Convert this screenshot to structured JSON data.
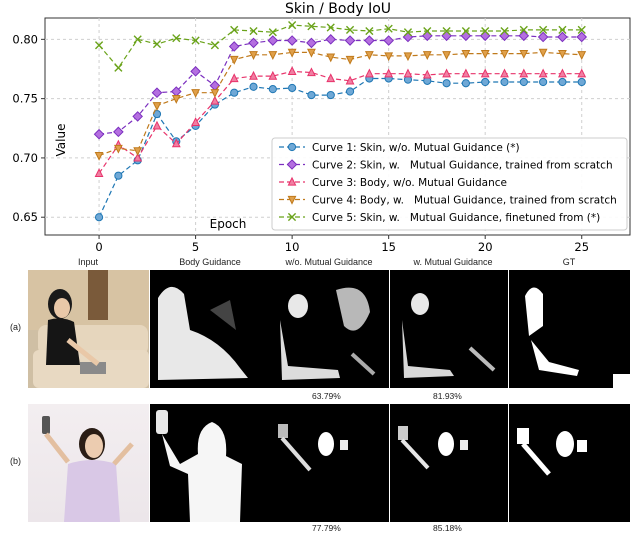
{
  "chart_data": {
    "type": "line",
    "title": "Skin / Body IoU",
    "xlabel": "Epoch",
    "ylabel": "Value",
    "xlim": [
      -2.8,
      27.5
    ],
    "ylim": [
      0.635,
      0.818
    ],
    "x_ticks": [
      0,
      5,
      10,
      15,
      20,
      25
    ],
    "y_ticks": [
      0.65,
      0.7,
      0.75,
      0.8
    ],
    "y_tick_labels": [
      "0.65",
      "0.70",
      "0.75",
      "0.80"
    ],
    "grid": true,
    "legend_position": "lower-right",
    "x": [
      0,
      1,
      2,
      3,
      4,
      5,
      6,
      7,
      8,
      9,
      10,
      11,
      12,
      13,
      14,
      15,
      16,
      17,
      18,
      19,
      20,
      21,
      22,
      23,
      24,
      25
    ],
    "series": [
      {
        "name": "Curve 1: Skin, w/o. Mutual Guidance (*)",
        "color": "#1f77b4",
        "fill": "#6fa8d6",
        "marker": "circle",
        "values": [
          0.65,
          0.685,
          0.698,
          0.737,
          0.714,
          0.727,
          0.745,
          0.755,
          0.76,
          0.758,
          0.759,
          0.753,
          0.753,
          0.756,
          0.767,
          0.767,
          0.766,
          0.765,
          0.763,
          0.763,
          0.764,
          0.764,
          0.764,
          0.764,
          0.764,
          0.764
        ]
      },
      {
        "name": "Curve 2: Skin, w.   Mutual Guidance, trained from scratch",
        "color": "#7b2fbf",
        "fill": "#b46fe0",
        "marker": "diamond",
        "values": [
          0.72,
          0.722,
          0.735,
          0.755,
          0.756,
          0.773,
          0.761,
          0.794,
          0.797,
          0.799,
          0.799,
          0.797,
          0.8,
          0.799,
          0.799,
          0.799,
          0.802,
          0.803,
          0.803,
          0.803,
          0.803,
          0.803,
          0.803,
          0.802,
          0.802,
          0.802
        ]
      },
      {
        "name": "Curve 3: Body, w/o. Mutual Guidance",
        "color": "#e8336b",
        "fill": "#f07fa2",
        "marker": "triangle-up",
        "values": [
          0.687,
          0.711,
          0.7,
          0.727,
          0.712,
          0.73,
          0.748,
          0.767,
          0.769,
          0.769,
          0.773,
          0.772,
          0.767,
          0.765,
          0.771,
          0.771,
          0.771,
          0.77,
          0.771,
          0.771,
          0.771,
          0.771,
          0.771,
          0.771,
          0.771,
          0.771
        ]
      },
      {
        "name": "Curve 4: Body, w.   Mutual Guidance, trained from scratch",
        "color": "#c07a1c",
        "fill": "#e0a04a",
        "marker": "triangle-down",
        "values": [
          0.702,
          0.708,
          0.706,
          0.744,
          0.75,
          0.755,
          0.755,
          0.783,
          0.787,
          0.787,
          0.789,
          0.789,
          0.785,
          0.783,
          0.787,
          0.786,
          0.786,
          0.787,
          0.787,
          0.788,
          0.788,
          0.788,
          0.788,
          0.789,
          0.788,
          0.787
        ]
      },
      {
        "name": "Curve 5: Skin, w.   Mutual Guidance, finetuned from (*)",
        "color": "#6aa31a",
        "fill": "#6aa31a",
        "marker": "x",
        "values": [
          0.795,
          0.776,
          0.8,
          0.796,
          0.801,
          0.799,
          0.795,
          0.808,
          0.807,
          0.806,
          0.812,
          0.811,
          0.81,
          0.808,
          0.807,
          0.809,
          0.806,
          0.807,
          0.807,
          0.807,
          0.807,
          0.807,
          0.808,
          0.808,
          0.808,
          0.808
        ]
      }
    ]
  },
  "figure": {
    "columns": [
      "Input",
      "Body Guidance",
      "w/o. Mutual Guidance",
      "w. Mutual Guidance",
      "GT"
    ],
    "rows": [
      {
        "label": "(a)",
        "wo_iou": "63.79%",
        "w_iou": "81.93%"
      },
      {
        "label": "(b)",
        "wo_iou": "77.79%",
        "w_iou": "85.18%"
      }
    ]
  }
}
